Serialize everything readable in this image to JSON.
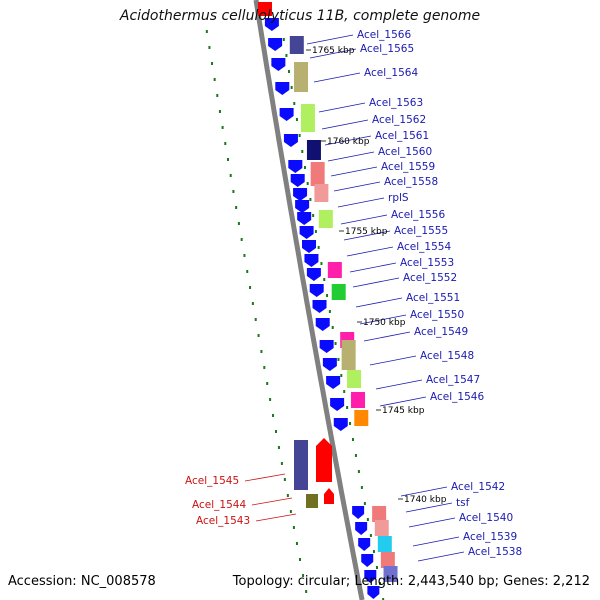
{
  "title": "Acidothermus cellulolyticus 11B, complete genome",
  "footer": {
    "accession_label": "Accession:",
    "accession": "NC_008578",
    "topology_label": "Topology:",
    "topology": "circular",
    "length_label": "Length:",
    "length": "2,443,540 bp",
    "genes_label": "Genes:",
    "genes": "2,212"
  },
  "colors": {
    "forward_gene": "#0a0aff",
    "reverse_gene": "#ff0000",
    "label_forward": "#1a1ab0",
    "label_reverse": "#cc1111",
    "backbone": "#808080",
    "gc_dots": "#1a7a1a"
  },
  "kbp_markers": [
    "1765 kbp",
    "1760 kbp",
    "1755 kbp",
    "1750 kbp",
    "1745 kbp",
    "1740 kbp"
  ],
  "forward_labels": [
    "Acel_1566",
    "Acel_1565",
    "Acel_1564",
    "Acel_1563",
    "Acel_1562",
    "Acel_1561",
    "Acel_1560",
    "Acel_1559",
    "Acel_1558",
    "rplS",
    "Acel_1556",
    "Acel_1555",
    "Acel_1554",
    "Acel_1553",
    "Acel_1552",
    "Acel_1551",
    "Acel_1550",
    "Acel_1549",
    "Acel_1548",
    "Acel_1547",
    "Acel_1546",
    "Acel_1542",
    "tsf",
    "Acel_1540",
    "Acel_1539",
    "Acel_1538"
  ],
  "reverse_labels": [
    "Acel_1545",
    "Acel_1544",
    "Acel_1543"
  ]
}
